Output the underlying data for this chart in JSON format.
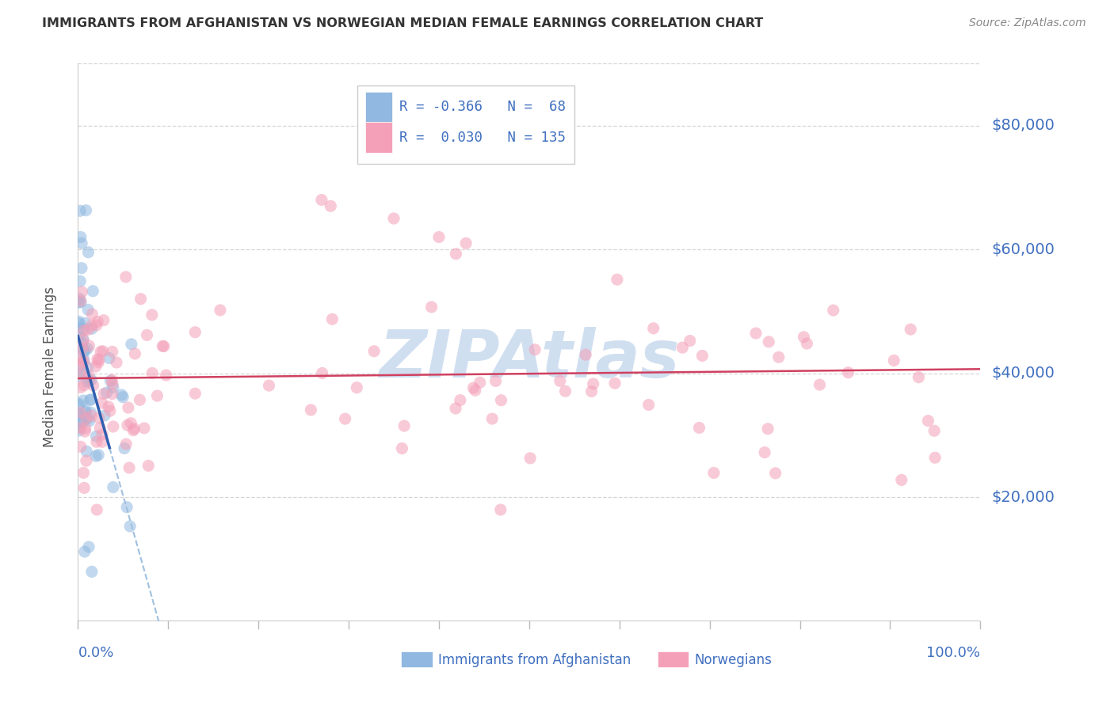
{
  "title": "IMMIGRANTS FROM AFGHANISTAN VS NORWEGIAN MEDIAN FEMALE EARNINGS CORRELATION CHART",
  "source": "Source: ZipAtlas.com",
  "ylabel": "Median Female Earnings",
  "y_ticks": [
    20000,
    40000,
    60000,
    80000
  ],
  "y_tick_labels": [
    "$20,000",
    "$40,000",
    "$60,000",
    "$80,000"
  ],
  "ylim": [
    0,
    90000
  ],
  "xlim": [
    0.0,
    1.0
  ],
  "series1_label": "Immigrants from Afghanistan",
  "series2_label": "Norwegians",
  "legend_r1": "R = -0.366",
  "legend_n1": "N =  68",
  "legend_r2": "R =  0.030",
  "legend_n2": "N = 135",
  "series1_color": "#90b8e0",
  "series2_color": "#f4a0b8",
  "trendline1_color": "#3060b0",
  "trendline2_color": "#d04060",
  "extrap_color": "#a0c0e0",
  "watermark": "ZIPAtlas",
  "watermark_color": "#d0dff0",
  "background_color": "#ffffff",
  "grid_color": "#cccccc",
  "tick_label_color": "#4070c0",
  "title_color": "#333333",
  "ylabel_color": "#555555",
  "legend_box_color": "#a0b8e0",
  "legend_text_color": "#4070c0",
  "source_color": "#888888"
}
